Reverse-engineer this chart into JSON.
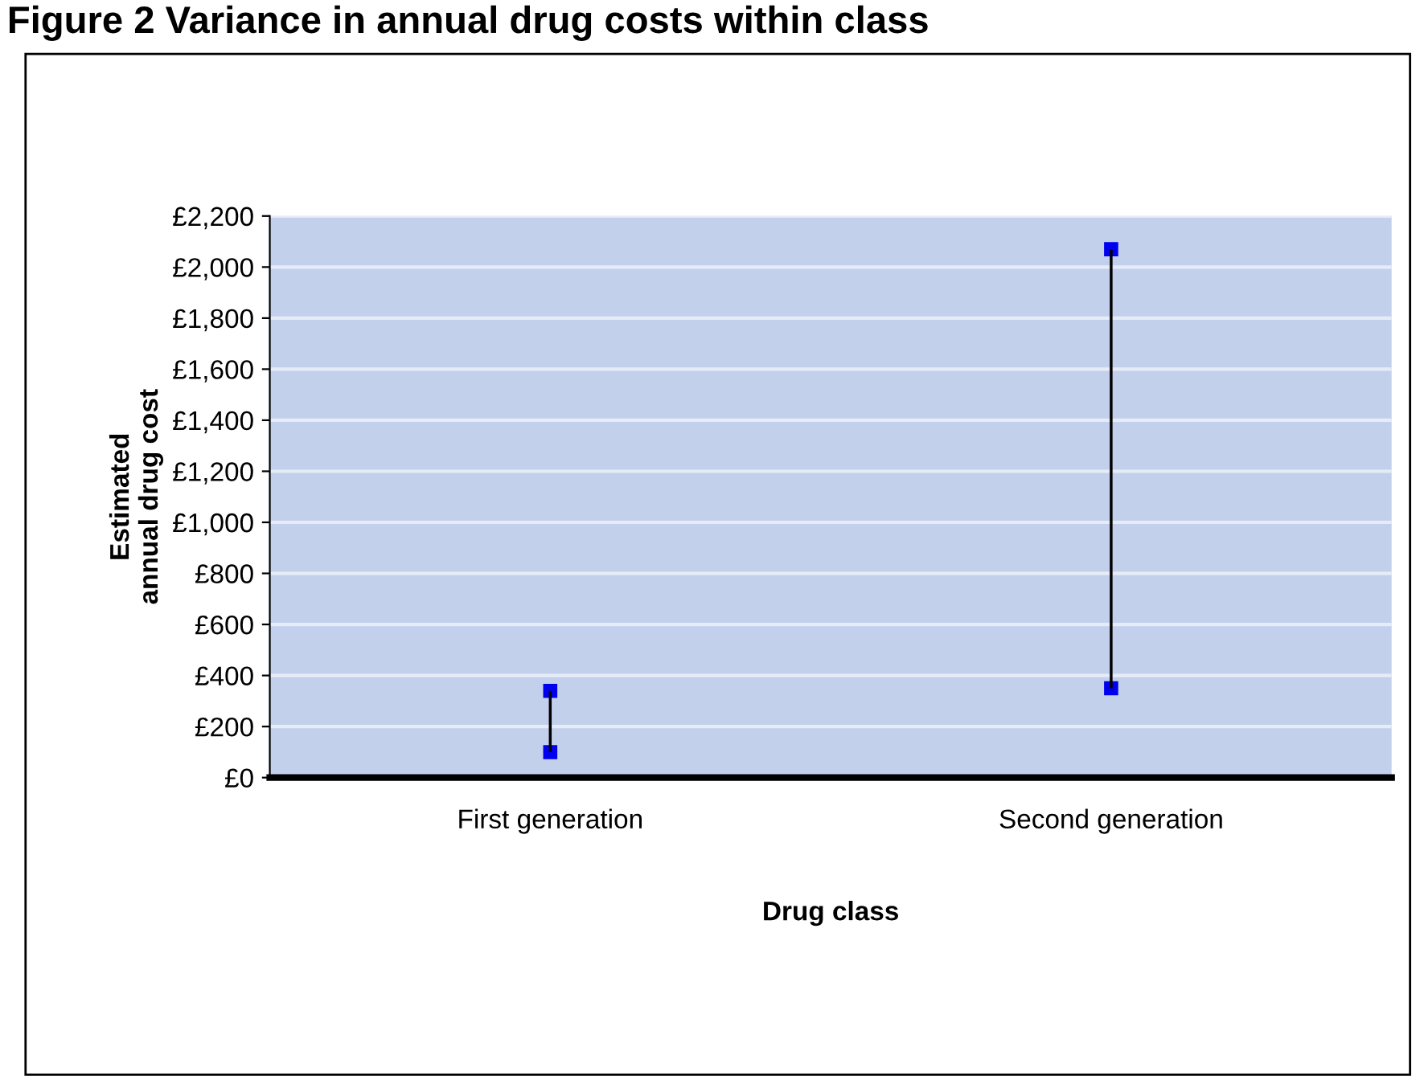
{
  "chart_data": {
    "type": "bar",
    "title": "Figure 2 Variance in annual drug costs within class",
    "xlabel": "Drug class",
    "ylabel": "Estimated\nannual drug cost",
    "categories": [
      "First generation",
      "Second generation"
    ],
    "base": [
      100,
      350
    ],
    "values": [
      240,
      1720
    ],
    "color": "#000000",
    "series": [
      {
        "type": "scatter",
        "color": "#0000ee",
        "values": [
          100,
          350
        ]
      },
      {
        "type": "scatter",
        "color": "#0000ee",
        "values": [
          340,
          2070
        ]
      }
    ],
    "marker": "square",
    "ylim": [
      0,
      2200
    ],
    "yticks": [
      {
        "value": 0,
        "label": "£0"
      },
      {
        "value": 200,
        "label": "£200"
      },
      {
        "value": 400,
        "label": "£400"
      },
      {
        "value": 600,
        "label": "£600"
      },
      {
        "value": 800,
        "label": "£800"
      },
      {
        "value": 1000,
        "label": "£1,000"
      },
      {
        "value": 1200,
        "label": "£1,200"
      },
      {
        "value": 1400,
        "label": "£1,400"
      },
      {
        "value": 1600,
        "label": "£1,600"
      },
      {
        "value": 1800,
        "label": "£1,800"
      },
      {
        "value": 2000,
        "label": "£2,000"
      },
      {
        "value": 2200,
        "label": "£2,200"
      }
    ],
    "grid": "y"
  }
}
